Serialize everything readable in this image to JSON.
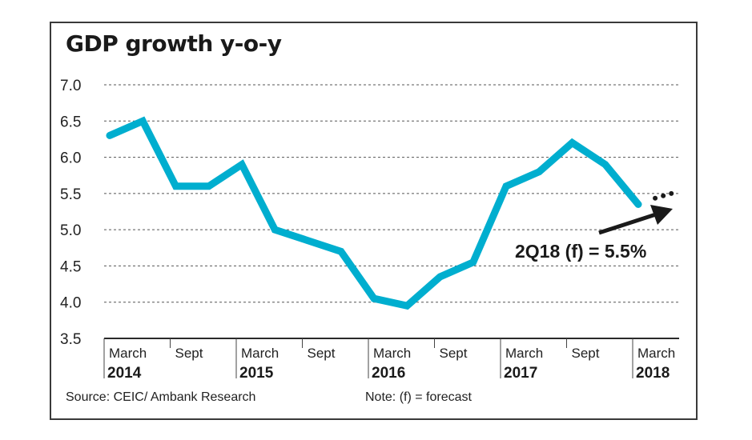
{
  "chart_data": {
    "type": "line",
    "title": "GDP growth y-o-y",
    "xlabel": "",
    "ylabel": "",
    "ylim": [
      3.5,
      7.0
    ],
    "yticks": [
      3.5,
      4.0,
      4.5,
      5.0,
      5.5,
      6.0,
      6.5,
      7.0
    ],
    "ytick_labels": [
      "3.5",
      "4.0",
      "4.5",
      "5.0",
      "5.5",
      "6.0",
      "6.5",
      "7.0"
    ],
    "grid": "horizontal-dotted",
    "x": [
      "1Q14",
      "2Q14",
      "3Q14",
      "4Q14",
      "1Q15",
      "2Q15",
      "3Q15",
      "4Q15",
      "1Q16",
      "2Q16",
      "3Q16",
      "4Q16",
      "1Q17",
      "2Q17",
      "3Q17",
      "4Q17",
      "1Q18"
    ],
    "xticks": [
      {
        "quarter_index": 0,
        "month": "March",
        "year": "2014"
      },
      {
        "quarter_index": 2,
        "month": "Sept",
        "year": ""
      },
      {
        "quarter_index": 4,
        "month": "March",
        "year": "2015"
      },
      {
        "quarter_index": 6,
        "month": "Sept",
        "year": ""
      },
      {
        "quarter_index": 8,
        "month": "March",
        "year": "2016"
      },
      {
        "quarter_index": 10,
        "month": "Sept",
        "year": ""
      },
      {
        "quarter_index": 12,
        "month": "March",
        "year": "2017"
      },
      {
        "quarter_index": 14,
        "month": "Sept",
        "year": ""
      },
      {
        "quarter_index": 16,
        "month": "March",
        "year": "2018"
      }
    ],
    "series": [
      {
        "name": "GDP growth y-o-y",
        "color": "#00aecf",
        "values": [
          6.3,
          6.5,
          5.6,
          5.6,
          5.9,
          5.0,
          4.85,
          4.7,
          4.05,
          3.95,
          4.35,
          4.55,
          5.6,
          5.8,
          6.2,
          5.9,
          5.35
        ]
      }
    ],
    "forecast": {
      "label": "2Q18 (f) = 5.5%",
      "quarter": "2Q18",
      "value": 5.5,
      "style": "dotted"
    },
    "annotation": "2Q18 (f) = 5.5%"
  },
  "footer": {
    "source": "Source: CEIC/ Ambank Research",
    "note": "Note: (f) = forecast"
  }
}
